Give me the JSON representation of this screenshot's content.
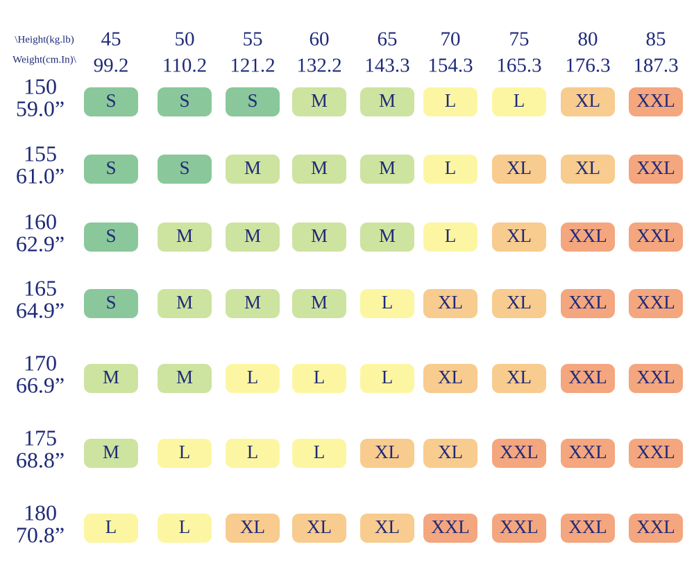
{
  "header": {
    "corner_top": "\\Height(kg.lb)",
    "corner_bottom": "Weight(cm.In)\\"
  },
  "columns": [
    {
      "kg": "45",
      "lb": "99.2"
    },
    {
      "kg": "50",
      "lb": "110.2"
    },
    {
      "kg": "55",
      "lb": "121.2"
    },
    {
      "kg": "60",
      "lb": "132.2"
    },
    {
      "kg": "65",
      "lb": "143.3"
    },
    {
      "kg": "70",
      "lb": "154.3"
    },
    {
      "kg": "75",
      "lb": "165.3"
    },
    {
      "kg": "80",
      "lb": "176.3"
    },
    {
      "kg": "85",
      "lb": "187.3"
    }
  ],
  "rows": [
    {
      "cm": "150",
      "in": "59.0”",
      "sizes": [
        "S",
        "S",
        "S",
        "M",
        "M",
        "L",
        "L",
        "XL",
        "XXL"
      ]
    },
    {
      "cm": "155",
      "in": "61.0”",
      "sizes": [
        "S",
        "S",
        "M",
        "M",
        "M",
        "L",
        "XL",
        "XL",
        "XXL"
      ]
    },
    {
      "cm": "160",
      "in": "62.9”",
      "sizes": [
        "S",
        "M",
        "M",
        "M",
        "M",
        "L",
        "XL",
        "XXL",
        "XXL"
      ]
    },
    {
      "cm": "165",
      "in": "64.9”",
      "sizes": [
        "S",
        "M",
        "M",
        "M",
        "L",
        "XL",
        "XL",
        "XXL",
        "XXL"
      ]
    },
    {
      "cm": "170",
      "in": "66.9”",
      "sizes": [
        "M",
        "M",
        "L",
        "L",
        "L",
        "XL",
        "XL",
        "XXL",
        "XXL"
      ]
    },
    {
      "cm": "175",
      "in": "68.8”",
      "sizes": [
        "M",
        "L",
        "L",
        "L",
        "XL",
        "XL",
        "XXL",
        "XXL",
        "XXL"
      ]
    },
    {
      "cm": "180",
      "in": "70.8”",
      "sizes": [
        "L",
        "L",
        "XL",
        "XL",
        "XL",
        "XXL",
        "XXL",
        "XXL",
        "XXL"
      ]
    }
  ],
  "size_colors": {
    "S": "#8ac79a",
    "M": "#cde3a0",
    "L": "#fcf6a2",
    "XL": "#f8cb8e",
    "XXL": "#f4a67e"
  }
}
